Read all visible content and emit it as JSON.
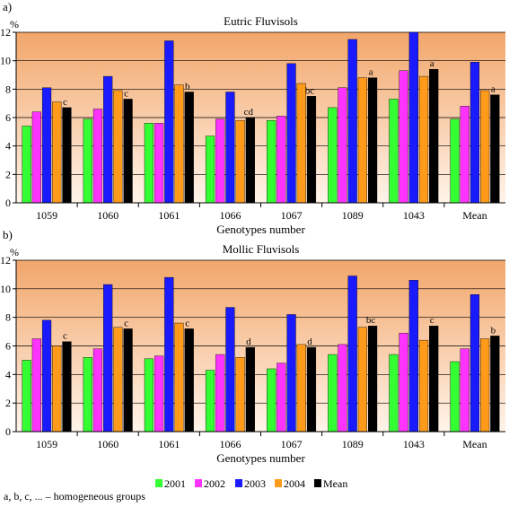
{
  "colors": {
    "2001": "#33ff33",
    "2002": "#ff33ff",
    "2003": "#1a1aff",
    "2004": "#ff9a1a",
    "Mean": "#000000",
    "plot_top": "#f2a66a",
    "plot_bottom": "#fff4ea",
    "group_label": "#4aa0d8",
    "group_label_mean": "#33cc33"
  },
  "legend": [
    "2001",
    "2002",
    "2003",
    "2004",
    "Mean"
  ],
  "footnote": "a, b, c, ... – homogeneous groups",
  "chart_data": [
    {
      "type": "bar",
      "panel_label": "a)",
      "title": "Eutric Fluvisols",
      "ylabel": "%",
      "xlabel": "Genotypes number",
      "ylim": [
        0,
        12
      ],
      "yticks": [
        0,
        2,
        4,
        6,
        8,
        10,
        12
      ],
      "grid": true,
      "categories": [
        "1059",
        "1060",
        "1061",
        "1066",
        "1067",
        "1089",
        "1043",
        "Mean"
      ],
      "series": [
        {
          "name": "2001",
          "values": [
            5.4,
            5.9,
            5.6,
            4.7,
            5.8,
            6.7,
            7.3,
            5.9
          ]
        },
        {
          "name": "2002",
          "values": [
            6.4,
            6.6,
            5.6,
            5.9,
            6.1,
            8.1,
            9.3,
            6.8
          ]
        },
        {
          "name": "2003",
          "values": [
            8.1,
            8.9,
            11.4,
            7.8,
            9.8,
            11.5,
            12.0,
            9.9
          ]
        },
        {
          "name": "2004",
          "values": [
            7.1,
            7.9,
            8.3,
            5.8,
            8.4,
            8.8,
            8.9,
            7.9
          ]
        },
        {
          "name": "Mean",
          "values": [
            6.7,
            7.3,
            7.8,
            6.0,
            7.5,
            8.8,
            9.4,
            7.6
          ]
        }
      ],
      "group_labels": [
        "c",
        "c",
        "b",
        "cd",
        "bc",
        "a",
        "a",
        "a"
      ]
    },
    {
      "type": "bar",
      "panel_label": "b)",
      "title": "Mollic Fluvisols",
      "ylabel": "%",
      "xlabel": "Genotypes number",
      "ylim": [
        0,
        12
      ],
      "yticks": [
        0,
        2,
        4,
        6,
        8,
        10,
        12
      ],
      "grid": true,
      "categories": [
        "1059",
        "1060",
        "1061",
        "1066",
        "1067",
        "1089",
        "1043",
        "Mean"
      ],
      "series": [
        {
          "name": "2001",
          "values": [
            5.0,
            5.2,
            5.1,
            4.3,
            4.4,
            5.4,
            5.4,
            4.9
          ]
        },
        {
          "name": "2002",
          "values": [
            6.5,
            5.8,
            5.3,
            5.4,
            4.8,
            6.1,
            6.9,
            5.8
          ]
        },
        {
          "name": "2003",
          "values": [
            7.8,
            10.3,
            10.8,
            8.7,
            8.2,
            10.9,
            10.6,
            9.6
          ]
        },
        {
          "name": "2004",
          "values": [
            6.0,
            7.3,
            7.6,
            5.2,
            6.1,
            7.3,
            6.4,
            6.5
          ]
        },
        {
          "name": "Mean",
          "values": [
            6.3,
            7.2,
            7.2,
            5.9,
            5.9,
            7.4,
            7.4,
            6.7
          ]
        }
      ],
      "group_labels": [
        "c",
        "c",
        "c",
        "d",
        "d",
        "bc",
        "c",
        "b"
      ]
    }
  ]
}
